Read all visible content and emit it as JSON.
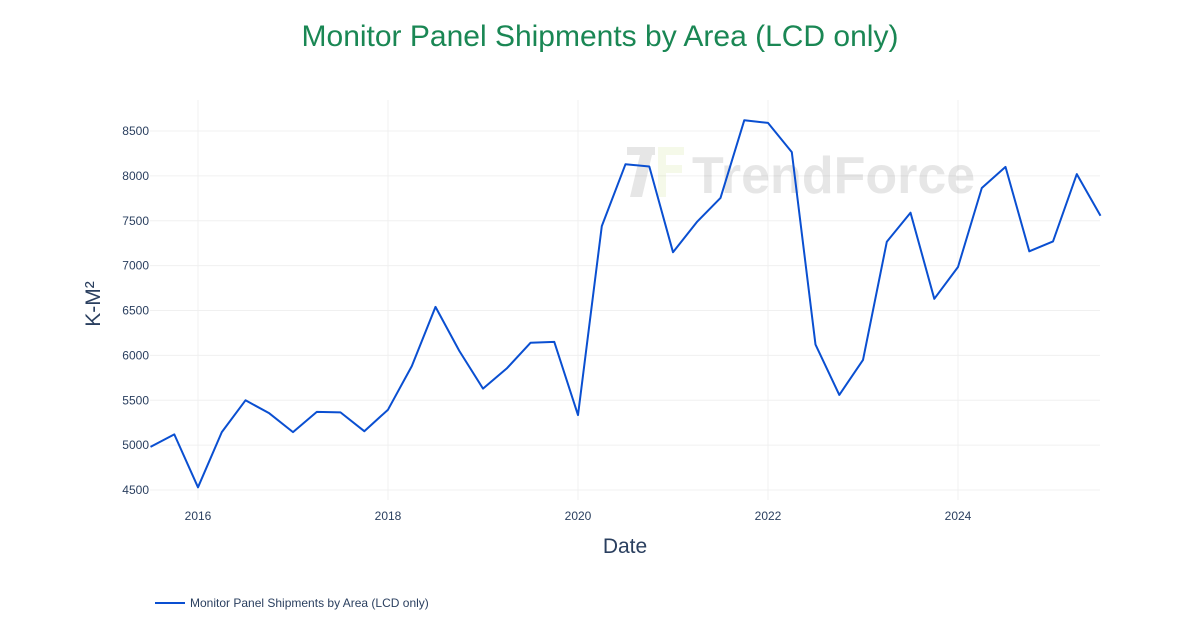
{
  "chart_data": {
    "type": "line",
    "title": "Monitor Panel Shipments by Area (LCD only)",
    "xlabel": "Date",
    "ylabel": "K-M²",
    "x_tick_labels": [
      "2016",
      "2018",
      "2020",
      "2022",
      "2024"
    ],
    "y_tick_labels": [
      "4500",
      "5000",
      "5500",
      "6000",
      "6500",
      "7000",
      "7500",
      "8000",
      "8500"
    ],
    "ylim": [
      4350,
      8800
    ],
    "grid": true,
    "legend_position": "bottom-left",
    "watermark": "TrendForce",
    "series": [
      {
        "name": "Monitor Panel Shipments by Area (LCD only)",
        "color": "#0a4fd1",
        "x": [
          "2015-Q3",
          "2015-Q4",
          "2016-Q1",
          "2016-Q2",
          "2016-Q3",
          "2016-Q4",
          "2017-Q1",
          "2017-Q2",
          "2017-Q3",
          "2017-Q4",
          "2018-Q1",
          "2018-Q2",
          "2018-Q3",
          "2018-Q4",
          "2019-Q1",
          "2019-Q2",
          "2019-Q3",
          "2019-Q4",
          "2020-Q1",
          "2020-Q2",
          "2020-Q3",
          "2020-Q4",
          "2021-Q1",
          "2021-Q2",
          "2021-Q3",
          "2021-Q4",
          "2022-Q1",
          "2022-Q2",
          "2022-Q3",
          "2022-Q4",
          "2023-Q1",
          "2023-Q2",
          "2023-Q3",
          "2023-Q4",
          "2024-Q1",
          "2024-Q2",
          "2024-Q3",
          "2024-Q4",
          "2025-Q1",
          "2025-Q2",
          "2025-Q3"
        ],
        "values": [
          4980,
          5120,
          4530,
          5145,
          5500,
          5355,
          5145,
          5370,
          5365,
          5155,
          5395,
          5880,
          6540,
          6050,
          5630,
          5855,
          6140,
          6150,
          5335,
          7440,
          8130,
          8105,
          7150,
          7485,
          7755,
          8620,
          8590,
          8265,
          6120,
          5560,
          5950,
          7265,
          7590,
          6630,
          6985,
          7865,
          8100,
          7160,
          7270,
          8020,
          7555
        ]
      }
    ]
  },
  "legend": {
    "label": "Monitor Panel Shipments by Area (LCD only)"
  }
}
